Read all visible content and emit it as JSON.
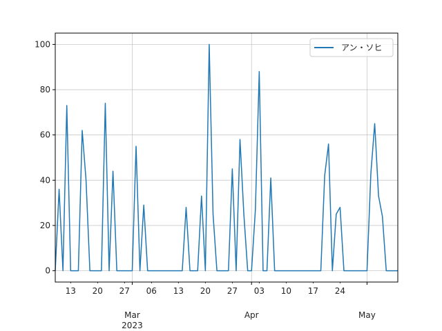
{
  "chart_data": {
    "type": "line",
    "grid": true,
    "legend_position": "top-right",
    "ylim": [
      -5,
      105
    ],
    "xlim": [
      "2023-02-09",
      "2023-05-09"
    ],
    "y_ticks": [
      0,
      20,
      40,
      60,
      80,
      100
    ],
    "x_minor_ticks": [
      {
        "date": "2023-02-13",
        "label": "13"
      },
      {
        "date": "2023-02-20",
        "label": "20"
      },
      {
        "date": "2023-02-27",
        "label": "27"
      },
      {
        "date": "2023-03-06",
        "label": "06"
      },
      {
        "date": "2023-03-13",
        "label": "13"
      },
      {
        "date": "2023-03-20",
        "label": "20"
      },
      {
        "date": "2023-03-27",
        "label": "27"
      },
      {
        "date": "2023-04-03",
        "label": "03"
      },
      {
        "date": "2023-04-10",
        "label": "10"
      },
      {
        "date": "2023-04-17",
        "label": "17"
      },
      {
        "date": "2023-04-24",
        "label": "24"
      }
    ],
    "x_major_ticks": [
      {
        "date": "2023-03-01",
        "label": "Mar",
        "sublabel": "2023"
      },
      {
        "date": "2023-04-01",
        "label": "Apr",
        "sublabel": ""
      },
      {
        "date": "2023-05-01",
        "label": "May",
        "sublabel": ""
      }
    ],
    "series": [
      {
        "name": "アン・ソヒ",
        "color": "#1f77b4",
        "x": [
          "2023-02-09",
          "2023-02-10",
          "2023-02-11",
          "2023-02-12",
          "2023-02-13",
          "2023-02-14",
          "2023-02-15",
          "2023-02-16",
          "2023-02-17",
          "2023-02-18",
          "2023-02-19",
          "2023-02-20",
          "2023-02-21",
          "2023-02-22",
          "2023-02-23",
          "2023-02-24",
          "2023-02-25",
          "2023-02-26",
          "2023-02-27",
          "2023-02-28",
          "2023-03-01",
          "2023-03-02",
          "2023-03-03",
          "2023-03-04",
          "2023-03-05",
          "2023-03-06",
          "2023-03-07",
          "2023-03-08",
          "2023-03-09",
          "2023-03-10",
          "2023-03-11",
          "2023-03-12",
          "2023-03-13",
          "2023-03-14",
          "2023-03-15",
          "2023-03-16",
          "2023-03-17",
          "2023-03-18",
          "2023-03-19",
          "2023-03-20",
          "2023-03-21",
          "2023-03-22",
          "2023-03-23",
          "2023-03-24",
          "2023-03-25",
          "2023-03-26",
          "2023-03-27",
          "2023-03-28",
          "2023-03-29",
          "2023-03-30",
          "2023-03-31",
          "2023-04-01",
          "2023-04-02",
          "2023-04-03",
          "2023-04-04",
          "2023-04-05",
          "2023-04-06",
          "2023-04-07",
          "2023-04-08",
          "2023-04-09",
          "2023-04-10",
          "2023-04-11",
          "2023-04-12",
          "2023-04-13",
          "2023-04-14",
          "2023-04-15",
          "2023-04-16",
          "2023-04-17",
          "2023-04-18",
          "2023-04-19",
          "2023-04-20",
          "2023-04-21",
          "2023-04-22",
          "2023-04-23",
          "2023-04-24",
          "2023-04-25",
          "2023-04-26",
          "2023-04-27",
          "2023-04-28",
          "2023-04-29",
          "2023-04-30",
          "2023-05-01",
          "2023-05-02",
          "2023-05-03",
          "2023-05-04",
          "2023-05-05",
          "2023-05-06",
          "2023-05-07",
          "2023-05-08",
          "2023-05-09"
        ],
        "y": [
          0,
          36,
          0,
          73,
          0,
          0,
          0,
          62,
          40,
          0,
          0,
          0,
          0,
          74,
          0,
          44,
          0,
          0,
          0,
          0,
          0,
          55,
          0,
          29,
          0,
          0,
          0,
          0,
          0,
          0,
          0,
          0,
          0,
          0,
          28,
          0,
          0,
          0,
          33,
          0,
          100,
          25,
          0,
          0,
          0,
          0,
          45,
          0,
          58,
          25,
          0,
          0,
          27,
          88,
          0,
          0,
          41,
          0,
          0,
          0,
          0,
          0,
          0,
          0,
          0,
          0,
          0,
          0,
          0,
          0,
          42,
          56,
          0,
          25,
          28,
          0,
          0,
          0,
          0,
          0,
          0,
          0,
          43,
          65,
          33,
          24,
          0,
          0,
          0,
          0
        ]
      }
    ]
  }
}
